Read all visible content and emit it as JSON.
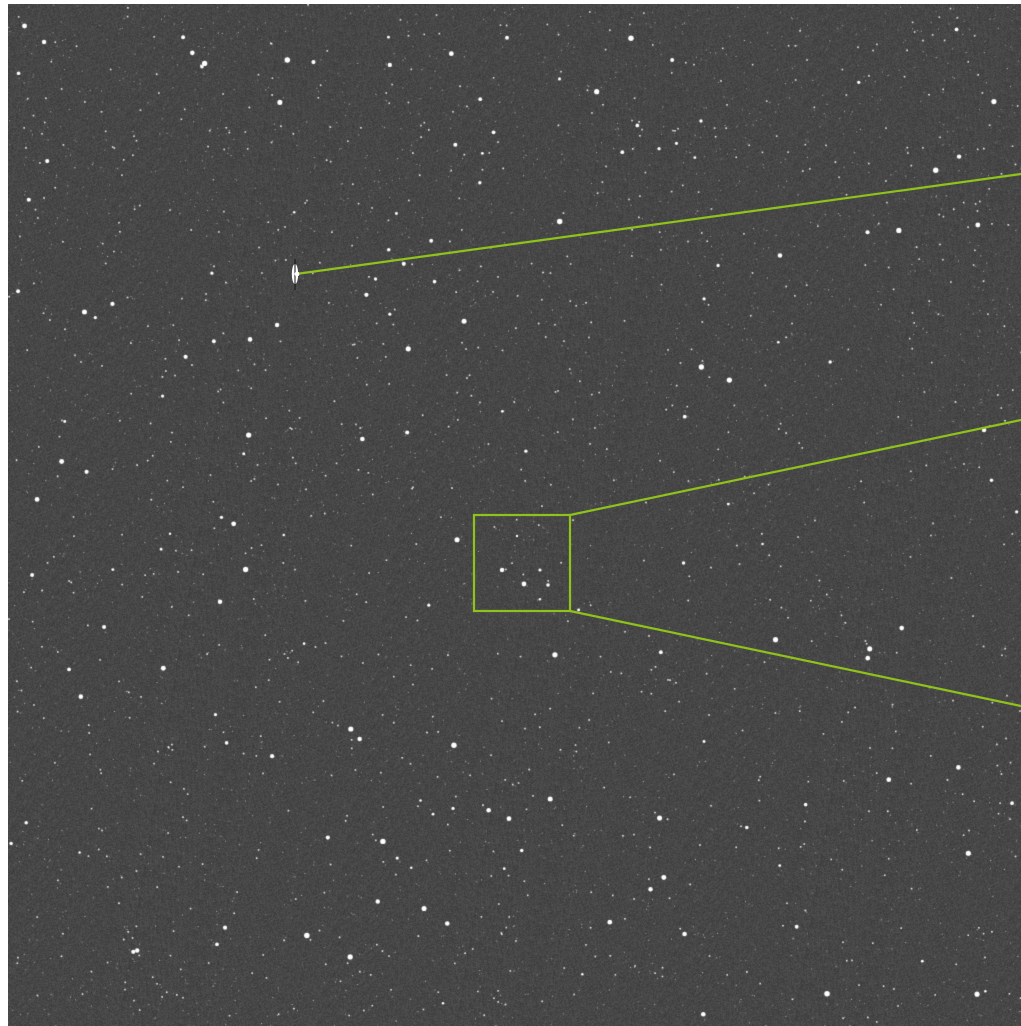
{
  "image": {
    "background_color": "#474747",
    "star_color": "#ffffff",
    "annotation_color": "#8fc21a"
  },
  "icons": {
    "bright_target": "bright-object-icon",
    "zoom_box": "zoom-region-box"
  }
}
